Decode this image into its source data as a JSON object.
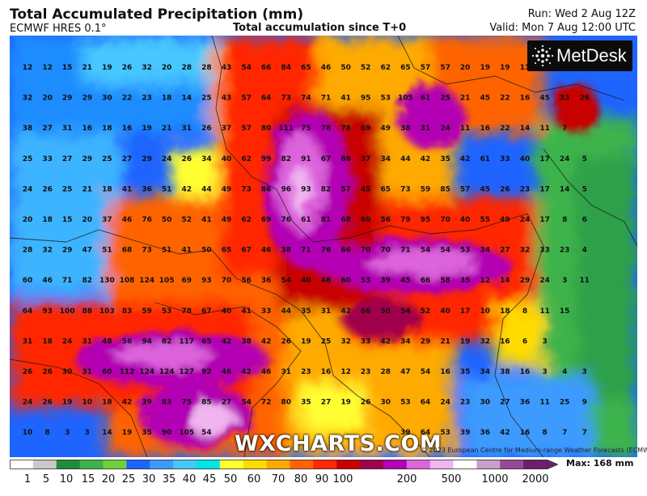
{
  "header": {
    "title": "Total Accumulated Precipitation (mm)",
    "model": "ECMWF HRES 0.1°",
    "subtitle": "Total accumulation since T+0",
    "run": "Run: Wed 2 Aug 12Z",
    "valid": "Valid: Mon 7 Aug 12:00 UTC"
  },
  "logo": {
    "text": "MetDesk",
    "icon": "starburst-logo-icon"
  },
  "brand": "WXCHARTS.COM",
  "copyright": "© 2023 European Centre for Medium-range Weather Forecasts (ECMWF)",
  "colorbar": {
    "max_label": "Max: 168 mm",
    "ticks": [
      "1",
      "5",
      "10",
      "15",
      "20",
      "25",
      "30",
      "35",
      "40",
      "45",
      "50",
      "60",
      "70",
      "80",
      "90",
      "100",
      "200",
      "500",
      "1000",
      "2000"
    ],
    "colors": [
      "#ffffff",
      "#c9c9c9",
      "#1e8c3c",
      "#3cb44b",
      "#6fcf3c",
      "#1e64ff",
      "#3c9bff",
      "#46c8ff",
      "#00e6e6",
      "#ffff32",
      "#ffdc00",
      "#ffaa00",
      "#ff6400",
      "#ff2800",
      "#c80000",
      "#a0004b",
      "#b400b4",
      "#dc64dc",
      "#f0b4f0",
      "#ffffff",
      "#c8a0c8",
      "#964896",
      "#6e1e6e"
    ]
  },
  "values": {
    "rows": [
      [
        "12",
        "12",
        "15",
        "21",
        "19",
        "26",
        "32",
        "20",
        "28",
        "28",
        "43",
        "54",
        "66",
        "84",
        "65",
        "46",
        "50",
        "52",
        "62",
        "65",
        "57",
        "57",
        "20",
        "19",
        "19",
        "11",
        "13",
        "23"
      ],
      [
        "32",
        "20",
        "29",
        "29",
        "30",
        "22",
        "23",
        "18",
        "14",
        "25",
        "43",
        "57",
        "64",
        "73",
        "74",
        "71",
        "41",
        "95",
        "53",
        "105",
        "61",
        "25",
        "21",
        "45",
        "22",
        "16",
        "45",
        "33",
        "26"
      ],
      [
        "38",
        "27",
        "31",
        "16",
        "18",
        "16",
        "19",
        "21",
        "31",
        "26",
        "37",
        "57",
        "80",
        "111",
        "75",
        "78",
        "78",
        "69",
        "49",
        "38",
        "31",
        "24",
        "11",
        "16",
        "22",
        "14",
        "11",
        "7"
      ],
      [
        "25",
        "33",
        "27",
        "29",
        "25",
        "27",
        "29",
        "24",
        "26",
        "34",
        "40",
        "62",
        "99",
        "82",
        "91",
        "67",
        "88",
        "37",
        "34",
        "44",
        "42",
        "35",
        "42",
        "61",
        "33",
        "40",
        "17",
        "24",
        "5"
      ],
      [
        "24",
        "26",
        "25",
        "21",
        "18",
        "41",
        "36",
        "51",
        "42",
        "44",
        "49",
        "73",
        "86",
        "96",
        "93",
        "82",
        "57",
        "45",
        "65",
        "73",
        "59",
        "85",
        "57",
        "45",
        "26",
        "23",
        "17",
        "14",
        "5"
      ],
      [
        "20",
        "18",
        "15",
        "20",
        "37",
        "46",
        "76",
        "50",
        "52",
        "41",
        "49",
        "62",
        "69",
        "76",
        "61",
        "81",
        "68",
        "60",
        "56",
        "79",
        "95",
        "70",
        "40",
        "55",
        "49",
        "24",
        "17",
        "8",
        "6"
      ],
      [
        "28",
        "32",
        "29",
        "47",
        "51",
        "68",
        "73",
        "51",
        "41",
        "50",
        "65",
        "67",
        "46",
        "38",
        "71",
        "76",
        "66",
        "70",
        "70",
        "71",
        "54",
        "54",
        "53",
        "34",
        "27",
        "32",
        "33",
        "23",
        "4"
      ],
      [
        "60",
        "46",
        "71",
        "82",
        "130",
        "108",
        "124",
        "105",
        "69",
        "93",
        "70",
        "56",
        "36",
        "54",
        "40",
        "48",
        "60",
        "53",
        "39",
        "45",
        "66",
        "58",
        "35",
        "12",
        "14",
        "29",
        "24",
        "3",
        "11"
      ],
      [
        "64",
        "93",
        "100",
        "88",
        "103",
        "83",
        "59",
        "53",
        "78",
        "67",
        "40",
        "41",
        "33",
        "44",
        "35",
        "31",
        "42",
        "66",
        "50",
        "54",
        "52",
        "40",
        "17",
        "10",
        "18",
        "8",
        "11",
        "15"
      ],
      [
        "31",
        "18",
        "24",
        "31",
        "48",
        "56",
        "94",
        "82",
        "117",
        "65",
        "42",
        "38",
        "42",
        "26",
        "19",
        "25",
        "32",
        "33",
        "42",
        "34",
        "29",
        "21",
        "19",
        "32",
        "16",
        "6",
        "3"
      ],
      [
        "26",
        "26",
        "30",
        "31",
        "60",
        "112",
        "124",
        "124",
        "127",
        "92",
        "46",
        "42",
        "46",
        "31",
        "23",
        "16",
        "12",
        "23",
        "28",
        "47",
        "54",
        "16",
        "35",
        "34",
        "38",
        "16",
        "3",
        "4",
        "3"
      ],
      [
        "24",
        "26",
        "19",
        "10",
        "18",
        "42",
        "39",
        "83",
        "75",
        "85",
        "27",
        "54",
        "72",
        "80",
        "35",
        "27",
        "19",
        "26",
        "30",
        "53",
        "64",
        "24",
        "23",
        "30",
        "27",
        "36",
        "11",
        "25",
        "9"
      ],
      [
        "10",
        "8",
        "3",
        "3",
        "14",
        "19",
        "35",
        "90",
        "105",
        "54",
        "",
        "",
        "",
        "",
        "",
        "",
        "",
        "",
        "",
        "39",
        "64",
        "53",
        "39",
        "36",
        "42",
        "16",
        "8",
        "7",
        "7"
      ]
    ]
  }
}
